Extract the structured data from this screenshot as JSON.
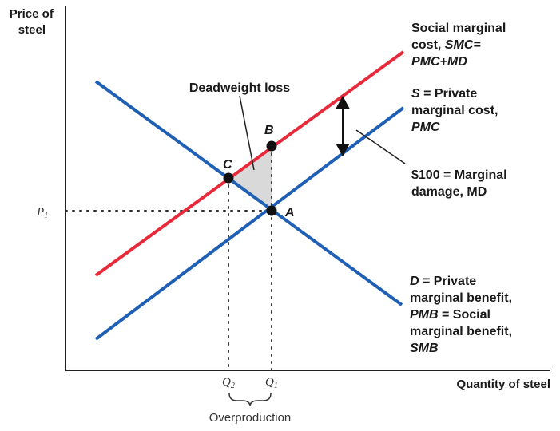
{
  "chart_data": {
    "type": "line",
    "axes": {
      "ylabel": [
        "Price of",
        "steel"
      ],
      "xlabel": "Quantity of steel"
    },
    "series": [
      {
        "name": "SMC",
        "color": "#e8293a",
        "x": [
          120,
          505
        ],
        "y": [
          345,
          65
        ],
        "label": [
          {
            "text": "Social marginal"
          },
          {
            "text": "cost, ",
            "em": "SMC="
          },
          {
            "em": "PMC+MD"
          }
        ]
      },
      {
        "name": "PMC",
        "color": "#1f5fb4",
        "x": [
          120,
          505
        ],
        "y": [
          425,
          135
        ],
        "label": [
          {
            "em": "S",
            "text": " = Private"
          },
          {
            "text": "marginal cost,"
          },
          {
            "em": "PMC"
          }
        ]
      },
      {
        "name": "D",
        "color": "#1f5fb4",
        "x": [
          120,
          503
        ],
        "y": [
          102,
          382
        ],
        "label": [
          {
            "em": "D",
            "text": " = Private"
          },
          {
            "text": "marginal benefit,"
          },
          {
            "em": "PMB",
            "text": " = Social"
          },
          {
            "text": "marginal benefit,"
          },
          {
            "em": "SMB"
          }
        ]
      }
    ],
    "points": [
      {
        "name": "A",
        "x": 340,
        "y": 264
      },
      {
        "name": "B",
        "x": 340,
        "y": 183
      },
      {
        "name": "C",
        "x": 286,
        "y": 223
      }
    ],
    "ticks": {
      "P1": {
        "base": "P",
        "sub": "1"
      },
      "Q1": {
        "base": "Q",
        "sub": "1"
      },
      "Q2": {
        "base": "Q",
        "sub": "2"
      }
    },
    "annotations": {
      "deadweight": "Deadweight loss",
      "md": [
        "$100 = Marginal",
        "damage, MD"
      ],
      "overproduction": "Overproduction"
    }
  }
}
